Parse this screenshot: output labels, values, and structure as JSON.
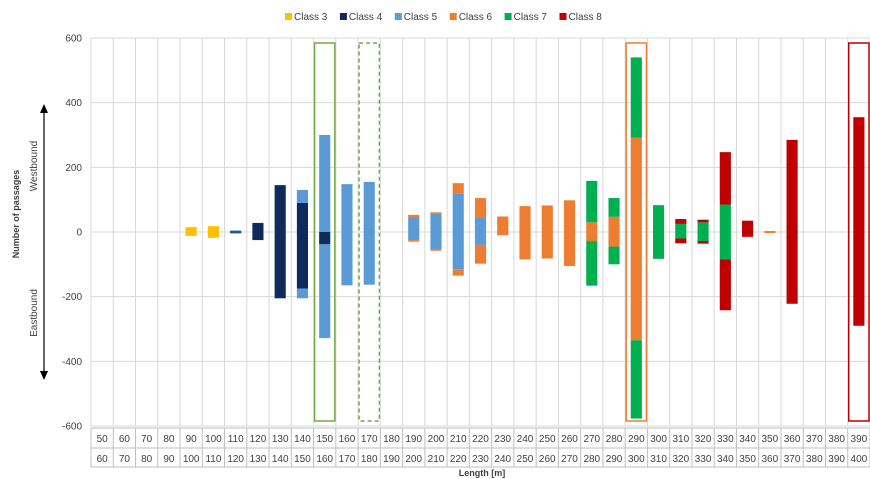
{
  "chart_data": {
    "type": "bar",
    "stacking": "stacked, diverging around zero",
    "ylim": [
      -600,
      600
    ],
    "yticks": [
      600,
      400,
      200,
      0,
      -200,
      -400,
      -600
    ],
    "grid": true,
    "legend_position": "top",
    "ylabel": "Number of passages",
    "xlabel": "Length [m]",
    "direction_labels": {
      "up": "Westbound",
      "down": "Eastbound"
    },
    "x_lower": [
      "50",
      "60",
      "70",
      "80",
      "90",
      "100",
      "110",
      "120",
      "130",
      "140",
      "150",
      "160",
      "170",
      "180",
      "190",
      "200",
      "210",
      "220",
      "230",
      "240",
      "250",
      "260",
      "270",
      "280",
      "290",
      "300",
      "310",
      "320",
      "330",
      "340",
      "350",
      "360",
      "370",
      "380",
      "390"
    ],
    "x_upper": [
      "60",
      "70",
      "80",
      "90",
      "100",
      "110",
      "120",
      "130",
      "140",
      "150",
      "160",
      "170",
      "180",
      "190",
      "200",
      "210",
      "220",
      "230",
      "240",
      "250",
      "260",
      "270",
      "280",
      "290",
      "300",
      "310",
      "320",
      "330",
      "340",
      "350",
      "360",
      "370",
      "380",
      "390",
      "400"
    ],
    "series": [
      {
        "name": "Class 3",
        "color": "#FFC000",
        "west": [
          0,
          0,
          0,
          0,
          15,
          18,
          0,
          0,
          0,
          0,
          0,
          0,
          0,
          0,
          0,
          0,
          0,
          0,
          0,
          0,
          0,
          0,
          0,
          0,
          0,
          0,
          0,
          0,
          0,
          0,
          0,
          0,
          0,
          0,
          0
        ],
        "east": [
          0,
          0,
          0,
          0,
          -12,
          -18,
          0,
          0,
          0,
          0,
          0,
          0,
          0,
          0,
          0,
          0,
          0,
          0,
          0,
          0,
          0,
          0,
          0,
          0,
          0,
          0,
          0,
          0,
          0,
          0,
          0,
          0,
          0,
          0,
          0
        ]
      },
      {
        "name": "Class 4",
        "color": "#0F2A5C",
        "west": [
          0,
          0,
          0,
          0,
          0,
          0,
          3,
          28,
          145,
          90,
          0,
          0,
          0,
          0,
          0,
          0,
          0,
          0,
          0,
          0,
          0,
          0,
          0,
          0,
          0,
          0,
          0,
          0,
          0,
          0,
          0,
          0,
          0,
          0,
          0
        ],
        "east": [
          0,
          0,
          0,
          0,
          0,
          0,
          -2,
          -25,
          -205,
          -175,
          -38,
          0,
          0,
          0,
          0,
          0,
          0,
          0,
          0,
          0,
          0,
          0,
          0,
          0,
          0,
          0,
          0,
          0,
          0,
          0,
          0,
          0,
          0,
          0,
          0
        ]
      },
      {
        "name": "Class 5",
        "color": "#5B9BD5",
        "west": [
          0,
          0,
          0,
          0,
          0,
          0,
          2,
          0,
          0,
          40,
          300,
          148,
          155,
          0,
          45,
          58,
          118,
          45,
          0,
          0,
          0,
          0,
          0,
          0,
          0,
          0,
          0,
          0,
          0,
          0,
          0,
          0,
          0,
          0,
          0
        ],
        "east": [
          0,
          0,
          0,
          0,
          0,
          0,
          -2,
          0,
          0,
          -30,
          -290,
          -165,
          -163,
          0,
          -25,
          -55,
          -115,
          -40,
          0,
          0,
          0,
          0,
          0,
          0,
          0,
          0,
          0,
          0,
          0,
          0,
          0,
          0,
          0,
          0,
          0
        ]
      },
      {
        "name": "Class 6",
        "color": "#ED7D31",
        "west": [
          0,
          0,
          0,
          0,
          0,
          0,
          0,
          0,
          0,
          0,
          0,
          0,
          0,
          0,
          8,
          3,
          33,
          60,
          48,
          80,
          82,
          98,
          30,
          47,
          292,
          0,
          0,
          0,
          0,
          0,
          3,
          0,
          0,
          0,
          0
        ],
        "east": [
          0,
          0,
          0,
          0,
          0,
          0,
          0,
          0,
          0,
          0,
          0,
          0,
          0,
          0,
          -5,
          -3,
          -20,
          -58,
          -10,
          -85,
          -82,
          -105,
          -28,
          -45,
          -335,
          0,
          0,
          0,
          0,
          0,
          -2,
          0,
          0,
          0,
          0
        ]
      },
      {
        "name": "Class 7",
        "color": "#00B050",
        "west": [
          0,
          0,
          0,
          0,
          0,
          0,
          0,
          0,
          0,
          0,
          0,
          0,
          0,
          0,
          0,
          0,
          0,
          0,
          0,
          0,
          0,
          0,
          128,
          58,
          248,
          83,
          25,
          30,
          85,
          0,
          0,
          0,
          0,
          0,
          0
        ],
        "east": [
          0,
          0,
          0,
          0,
          0,
          0,
          0,
          0,
          0,
          0,
          0,
          0,
          0,
          0,
          0,
          0,
          0,
          0,
          0,
          0,
          0,
          0,
          -138,
          -55,
          -242,
          -83,
          -20,
          -28,
          -85,
          0,
          0,
          0,
          0,
          0,
          0
        ]
      },
      {
        "name": "Class 8",
        "color": "#C00000",
        "west": [
          0,
          0,
          0,
          0,
          0,
          0,
          0,
          0,
          0,
          0,
          0,
          0,
          0,
          0,
          0,
          0,
          0,
          0,
          0,
          0,
          0,
          0,
          0,
          0,
          0,
          0,
          15,
          8,
          162,
          35,
          0,
          285,
          0,
          0,
          355
        ],
        "east": [
          0,
          0,
          0,
          0,
          0,
          0,
          0,
          0,
          0,
          0,
          0,
          0,
          0,
          0,
          0,
          0,
          0,
          0,
          0,
          0,
          0,
          0,
          0,
          0,
          0,
          0,
          -15,
          -8,
          -157,
          -15,
          0,
          -222,
          0,
          0,
          -290
        ]
      }
    ],
    "highlights": [
      {
        "bin": 10,
        "color": "#70AD47",
        "style": "solid"
      },
      {
        "bin": 12,
        "color": "#70AD47",
        "style": "dashed"
      },
      {
        "bin": 24,
        "color": "#ED7D31",
        "style": "solid"
      },
      {
        "bin": 34,
        "color": "#C00000",
        "style": "solid"
      }
    ]
  }
}
